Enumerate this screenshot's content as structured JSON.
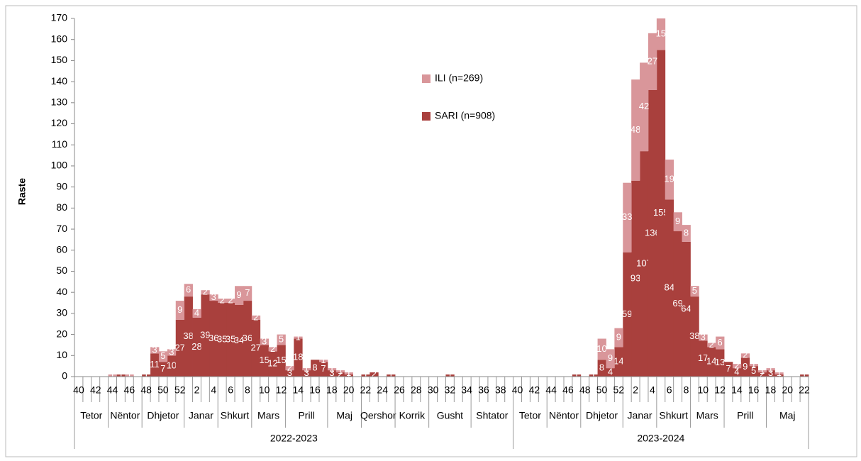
{
  "chart_data": {
    "type": "bar",
    "stacked": true,
    "y_label": "Raste",
    "ylim": [
      0,
      170
    ],
    "yticks": [
      0,
      10,
      20,
      30,
      40,
      50,
      60,
      70,
      80,
      90,
      100,
      110,
      120,
      130,
      140,
      150,
      160,
      170
    ],
    "categories": [
      "40",
      null,
      "42",
      null,
      "44",
      null,
      "46",
      null,
      "48",
      null,
      "50",
      null,
      "52",
      null,
      "2",
      null,
      "4",
      null,
      "6",
      null,
      "8",
      null,
      "10",
      null,
      "12",
      null,
      "14",
      null,
      "16",
      null,
      "18",
      null,
      "20",
      null,
      "22",
      null,
      "24",
      null,
      "26",
      null,
      "28",
      null,
      "30",
      null,
      "32",
      null,
      "34",
      null,
      "36",
      null,
      "38",
      null,
      "40",
      null,
      "42",
      null,
      "44",
      null,
      "46",
      null,
      "48",
      null,
      "50",
      null,
      "52",
      null,
      "2",
      null,
      "4",
      null,
      "6",
      null,
      "8",
      null,
      "10",
      null,
      "12",
      null,
      "14",
      null,
      "16",
      null,
      "18",
      null,
      "20",
      null,
      "22"
    ],
    "month_groups": [
      {
        "label": "Tetor",
        "count": 4
      },
      {
        "label": "Nëntor",
        "count": 4
      },
      {
        "label": "Dhjetor",
        "count": 5
      },
      {
        "label": "Janar",
        "count": 4
      },
      {
        "label": "Shkurt",
        "count": 4
      },
      {
        "label": "Mars",
        "count": 4
      },
      {
        "label": "Prill",
        "count": 5
      },
      {
        "label": "Maj",
        "count": 4
      },
      {
        "label": "Qershor",
        "count": 4
      },
      {
        "label": "Korrik",
        "count": 4
      },
      {
        "label": "Gusht",
        "count": 5
      },
      {
        "label": "Shtator",
        "count": 5
      },
      {
        "label": "Tetor",
        "count": 4
      },
      {
        "label": "Nëntor",
        "count": 4
      },
      {
        "label": "Dhjetor",
        "count": 5
      },
      {
        "label": "Janar",
        "count": 4
      },
      {
        "label": "Shkurt",
        "count": 4
      },
      {
        "label": "Mars",
        "count": 4
      },
      {
        "label": "Prill",
        "count": 5
      },
      {
        "label": "Maj",
        "count": 5
      }
    ],
    "season_groups": [
      {
        "label": "2022-2023",
        "count": 52
      },
      {
        "label": "2023-2024",
        "count": 35
      }
    ],
    "series": [
      {
        "name": "SARI (n=908)",
        "color": "#a9403d",
        "values": [
          0,
          0,
          0,
          0,
          0,
          1,
          0,
          0,
          1,
          11,
          7,
          10,
          27,
          38,
          28,
          39,
          36,
          35,
          35,
          34,
          36,
          27,
          15,
          12,
          15,
          3,
          18,
          3,
          8,
          7,
          3,
          2,
          1,
          0,
          1,
          2,
          0,
          1,
          0,
          0,
          0,
          0,
          0,
          0,
          1,
          0,
          0,
          0,
          0,
          0,
          0,
          0,
          0,
          0,
          0,
          0,
          0,
          0,
          0,
          1,
          0,
          1,
          8,
          4,
          14,
          59,
          93,
          107,
          136,
          155,
          84,
          69,
          64,
          38,
          17,
          14,
          13,
          7,
          4,
          9,
          5,
          2,
          3,
          1,
          0,
          0,
          1
        ]
      },
      {
        "name": "ILI (n=269)",
        "color": "#d9969a",
        "values": [
          0,
          0,
          0,
          0,
          1,
          0,
          1,
          0,
          0,
          3,
          5,
          3,
          9,
          6,
          4,
          2,
          3,
          2,
          2,
          9,
          7,
          2,
          3,
          2,
          5,
          2,
          1,
          1,
          0,
          1,
          1,
          1,
          1,
          0,
          0,
          0,
          0,
          0,
          0,
          0,
          0,
          0,
          0,
          0,
          0,
          0,
          0,
          0,
          0,
          0,
          0,
          0,
          0,
          0,
          0,
          0,
          0,
          0,
          0,
          0,
          0,
          0,
          10,
          9,
          9,
          33,
          48,
          42,
          27,
          15,
          19,
          9,
          8,
          5,
          3,
          2,
          6,
          0,
          2,
          2,
          1,
          1,
          1,
          1,
          0,
          0,
          0
        ]
      }
    ]
  }
}
